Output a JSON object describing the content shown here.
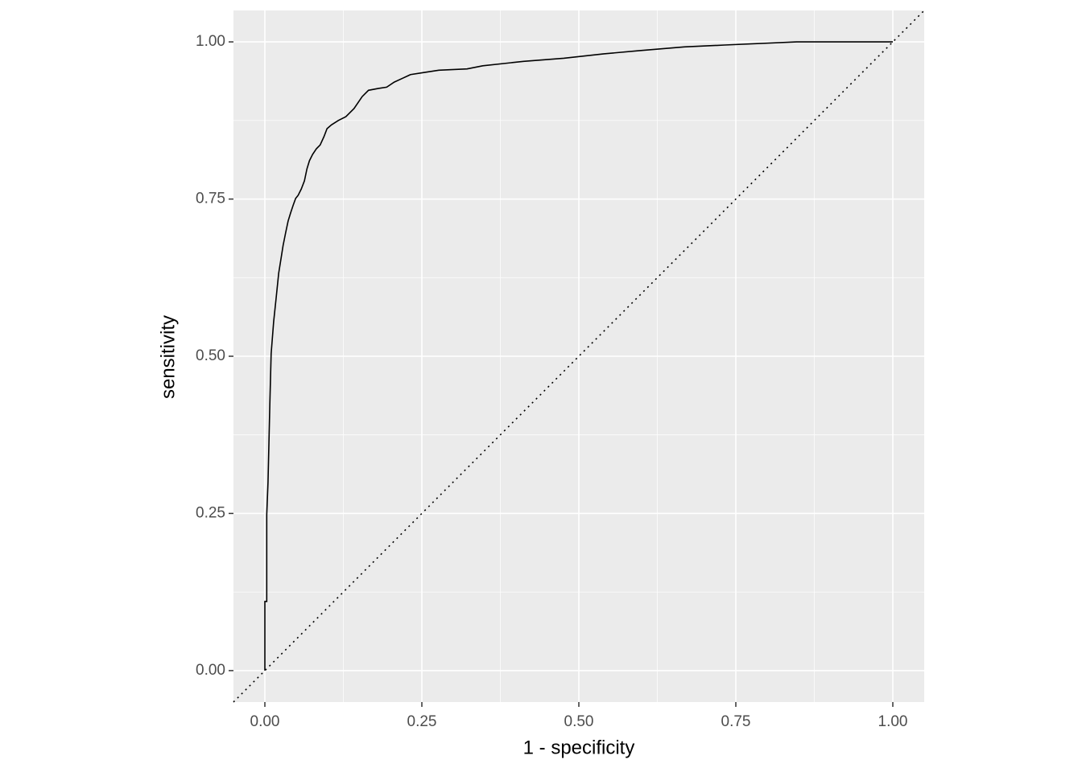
{
  "chart_data": {
    "type": "line",
    "x_label": "1 - specificity",
    "y_label": "sensitivity",
    "xlim": [
      -0.05,
      1.05
    ],
    "ylim": [
      -0.05,
      1.05
    ],
    "xticks": [
      {
        "value": 0,
        "label": "0.00"
      },
      {
        "value": 0.25,
        "label": "0.25"
      },
      {
        "value": 0.5,
        "label": "0.50"
      },
      {
        "value": 0.75,
        "label": "0.75"
      },
      {
        "value": 1,
        "label": "1.00"
      }
    ],
    "yticks": [
      {
        "value": 0,
        "label": "0.00"
      },
      {
        "value": 0.25,
        "label": "0.25"
      },
      {
        "value": 0.5,
        "label": "0.50"
      },
      {
        "value": 0.75,
        "label": "0.75"
      },
      {
        "value": 1,
        "label": "1.00"
      }
    ],
    "x_minor_ticks": [
      0.125,
      0.375,
      0.625,
      0.875
    ],
    "y_minor_ticks": [
      0.125,
      0.375,
      0.625,
      0.875
    ],
    "grid": true,
    "panel_color": "#ebebeb",
    "grid_color": "#ffffff",
    "reference_line": {
      "slope": 1,
      "intercept": 0,
      "style": "dotted"
    },
    "series": [
      {
        "color": "#000000",
        "x": [
          0,
          0,
          0.003,
          0.003,
          0.005,
          0.008,
          0.01,
          0.014,
          0.018,
          0.022,
          0.026,
          0.029,
          0.033,
          0.037,
          0.041,
          0.045,
          0.049,
          0.053,
          0.058,
          0.063,
          0.067,
          0.071,
          0.076,
          0.082,
          0.088,
          0.094,
          0.099,
          0.106,
          0.117,
          0.129,
          0.142,
          0.155,
          0.165,
          0.181,
          0.194,
          0.206,
          0.219,
          0.232,
          0.251,
          0.277,
          0.322,
          0.347,
          0.412,
          0.476,
          0.54,
          0.595,
          0.668,
          0.732,
          0.847,
          1
        ],
        "values": [
          0,
          0.11,
          0.11,
          0.248,
          0.299,
          0.427,
          0.504,
          0.555,
          0.593,
          0.632,
          0.657,
          0.676,
          0.696,
          0.715,
          0.728,
          0.74,
          0.751,
          0.756,
          0.766,
          0.779,
          0.798,
          0.811,
          0.821,
          0.83,
          0.836,
          0.849,
          0.862,
          0.868,
          0.875,
          0.881,
          0.894,
          0.913,
          0.923,
          0.926,
          0.928,
          0.936,
          0.942,
          0.948,
          0.951,
          0.955,
          0.957,
          0.962,
          0.969,
          0.974,
          0.981,
          0.986,
          0.992,
          0.995,
          1,
          1
        ]
      }
    ]
  }
}
